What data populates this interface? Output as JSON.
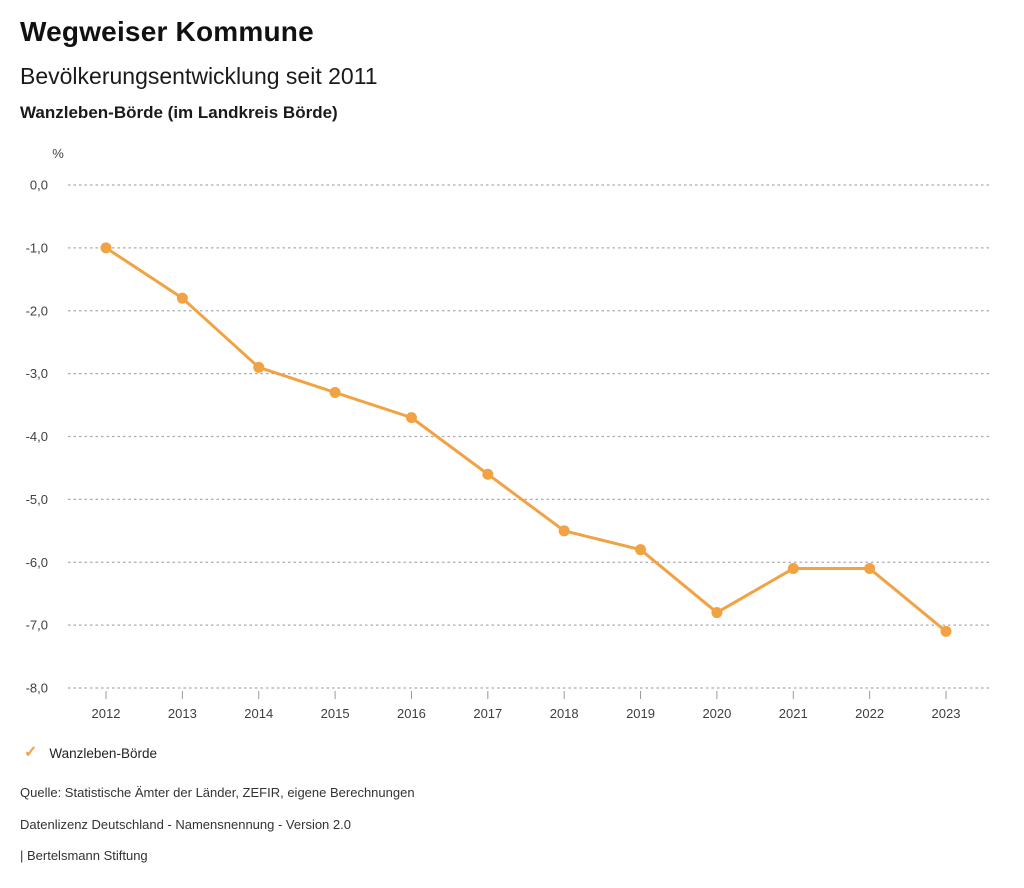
{
  "header": {
    "title": "Wegweiser Kommune",
    "subtitle": "Bevölkerungsentwicklung seit 2011",
    "region": "Wanzleben-Börde (im Landkreis Börde)"
  },
  "chart_data": {
    "type": "line",
    "title": "Bevölkerungsentwicklung seit 2011",
    "ylabel": "%",
    "xlabel": "",
    "x": [
      2012,
      2013,
      2014,
      2015,
      2016,
      2017,
      2018,
      2019,
      2020,
      2021,
      2022,
      2023
    ],
    "series": [
      {
        "name": "Wanzleben-Börde",
        "values": [
          -1.0,
          -1.8,
          -2.9,
          -3.3,
          -3.7,
          -4.6,
          -5.5,
          -5.8,
          -6.8,
          -6.1,
          -6.1,
          -7.1
        ],
        "color": "#F1A242"
      }
    ],
    "ylim": [
      -8.0,
      0.0
    ],
    "yticks": [
      0,
      -1,
      -2,
      -3,
      -4,
      -5,
      -6,
      -7,
      -8
    ],
    "ytick_labels": [
      "0,0",
      "-1,0",
      "-2,0",
      "-3,0",
      "-4,0",
      "-5,0",
      "-6,0",
      "-7,0",
      "-8,0"
    ],
    "grid": "horizontal-dashed",
    "legend_position": "bottom-left"
  },
  "legend": {
    "check_icon": "✓",
    "label": "Wanzleben-Börde"
  },
  "footer": {
    "source": "Quelle: Statistische Ämter der Länder, ZEFIR, eigene Berechnungen",
    "license": "Datenlizenz Deutschland - Namensnennung - Version 2.0",
    "attribution": "| Bertelsmann Stiftung"
  },
  "colors": {
    "accent": "#F1A242",
    "grid": "#ABABAB",
    "axis_tick": "#999999",
    "text": "#1A1A1A",
    "axis_text": "#3F3F3F"
  }
}
